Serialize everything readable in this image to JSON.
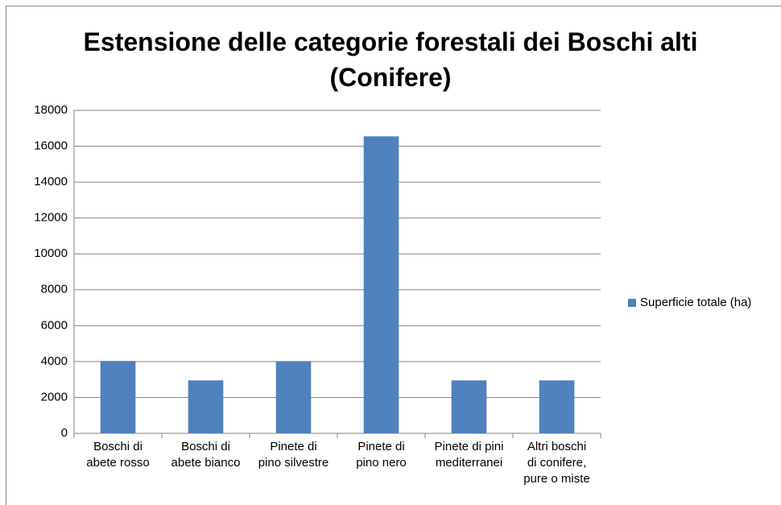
{
  "chart_data": {
    "type": "bar",
    "title": "Estensione delle categorie forestali dei Boschi alti\n(Conifere)",
    "categories": [
      "Boschi di\nabete rosso",
      "Boschi di\nabete bianco",
      "Pinete di\npino silvestre",
      "Pinete di\npino nero",
      "Pinete di pini\nmediterranei",
      "Altri boschi\ndi conifere,\npure o miste"
    ],
    "series": [
      {
        "name": "Superficie totale (ha)",
        "color": "#4f81bd",
        "values": [
          4030,
          2950,
          4020,
          16550,
          2950,
          2950
        ]
      }
    ],
    "ylim": [
      0,
      18000
    ],
    "yticks": [
      0,
      2000,
      4000,
      6000,
      8000,
      10000,
      12000,
      14000,
      16000,
      18000
    ],
    "grid": true,
    "legend": "right"
  }
}
